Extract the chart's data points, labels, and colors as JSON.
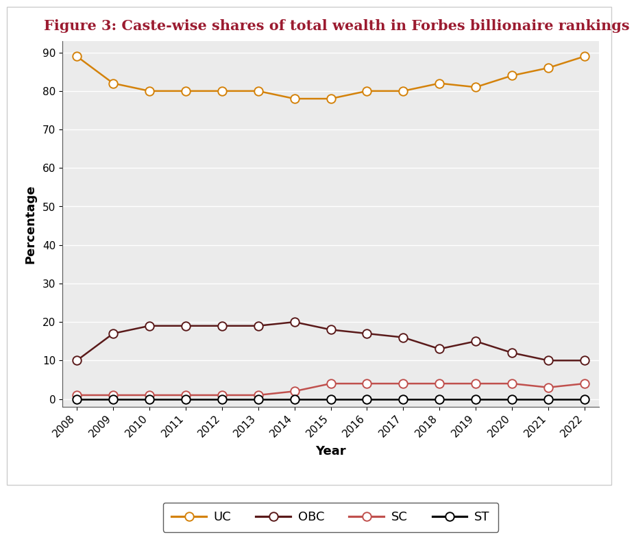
{
  "title": "Figure 3: Caste-wise shares of total wealth in Forbes billionaire rankings",
  "title_color": "#9b1b30",
  "xlabel": "Year",
  "ylabel": "Percentage",
  "years": [
    2008,
    2009,
    2010,
    2011,
    2012,
    2013,
    2014,
    2015,
    2016,
    2017,
    2018,
    2019,
    2020,
    2021,
    2022
  ],
  "UC": [
    89,
    82,
    80,
    80,
    80,
    80,
    78,
    78,
    80,
    80,
    82,
    81,
    84,
    86,
    89
  ],
  "OBC": [
    10,
    17,
    19,
    19,
    19,
    19,
    20,
    18,
    17,
    16,
    13,
    15,
    12,
    10,
    10
  ],
  "SC": [
    1,
    1,
    1,
    1,
    1,
    1,
    2,
    4,
    4,
    4,
    4,
    4,
    4,
    3,
    4
  ],
  "ST": [
    0,
    0,
    0,
    0,
    0,
    0,
    0,
    0,
    0,
    0,
    0,
    0,
    0,
    0,
    0
  ],
  "UC_color": "#d4820a",
  "OBC_color": "#5a1a1a",
  "SC_color": "#c0504d",
  "ST_color": "#000000",
  "plot_bg_color": "#ebebeb",
  "fig_bg_color": "#ffffff",
  "ylim": [
    -2,
    93
  ],
  "yticks": [
    0,
    10,
    20,
    30,
    40,
    50,
    60,
    70,
    80,
    90
  ],
  "marker_size": 9,
  "linewidth": 1.8,
  "marker_facecolor": "white",
  "marker_linewidth": 1.4,
  "title_fontsize": 15,
  "axis_label_fontsize": 13,
  "tick_fontsize": 11
}
